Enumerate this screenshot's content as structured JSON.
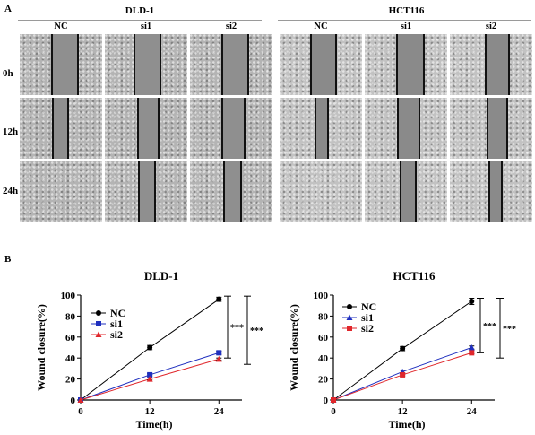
{
  "panel_a": {
    "label": "A",
    "groups": [
      {
        "title": "DLD-1",
        "columns": [
          "NC",
          "si1",
          "si2"
        ]
      },
      {
        "title": "HCT116",
        "columns": [
          "NC",
          "si1",
          "si2"
        ]
      }
    ],
    "rows": [
      "0h",
      "12h",
      "24h"
    ]
  },
  "panel_b": {
    "label": "B"
  },
  "colors": {
    "NC": "#000000",
    "si1": "#1f2fbf",
    "si2": "#e0262b"
  },
  "chart_data": [
    {
      "type": "line",
      "title": "DLD-1",
      "xlabel": "Time(h)",
      "ylabel": "Wound closure(%)",
      "x": [
        0,
        12,
        24
      ],
      "xticks": [
        "0",
        "12",
        "24"
      ],
      "yticks": [
        "0",
        "20",
        "40",
        "60",
        "80",
        "100"
      ],
      "xlim": [
        0,
        28
      ],
      "ylim": [
        0,
        100
      ],
      "series": [
        {
          "name": "NC",
          "values": [
            0,
            50,
            96
          ],
          "err": [
            0,
            2,
            2
          ],
          "marker": "circle"
        },
        {
          "name": "si1",
          "values": [
            0,
            24,
            45
          ],
          "err": [
            0,
            1,
            1.5
          ],
          "marker": "square"
        },
        {
          "name": "si2",
          "values": [
            0,
            20,
            39
          ],
          "err": [
            0,
            1,
            1
          ],
          "marker": "triangle"
        }
      ],
      "significance": [
        "***",
        "***"
      ]
    },
    {
      "type": "line",
      "title": "HCT116",
      "xlabel": "Time(h)",
      "ylabel": "Wound closure(%)",
      "x": [
        0,
        12,
        24
      ],
      "xticks": [
        "0",
        "12",
        "24"
      ],
      "yticks": [
        "0",
        "20",
        "40",
        "60",
        "80",
        "100"
      ],
      "xlim": [
        0,
        28
      ],
      "ylim": [
        0,
        100
      ],
      "series": [
        {
          "name": "NC",
          "values": [
            0,
            49,
            94
          ],
          "err": [
            0,
            2,
            3
          ],
          "marker": "circle"
        },
        {
          "name": "si1",
          "values": [
            0,
            27,
            50
          ],
          "err": [
            0,
            1.5,
            1.5
          ],
          "marker": "triangle"
        },
        {
          "name": "si2",
          "values": [
            0,
            24,
            45
          ],
          "err": [
            0,
            1,
            1
          ],
          "marker": "square"
        }
      ],
      "significance": [
        "***",
        "***"
      ]
    }
  ]
}
